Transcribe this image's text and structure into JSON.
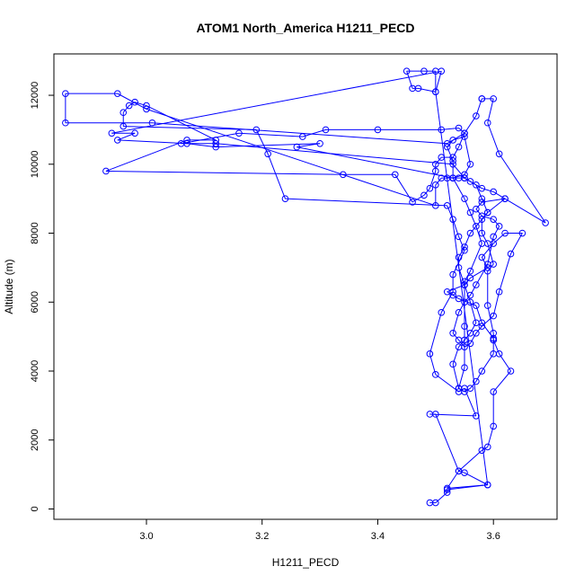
{
  "chart_data": {
    "type": "line",
    "title": "ATOM1 North_America H1211_PECD",
    "xlabel": "H1211_PECD",
    "ylabel": "Altitude (m)",
    "xlim": [
      2.84,
      3.71
    ],
    "ylim": [
      -300,
      13200
    ],
    "x_ticks": [
      3.0,
      3.2,
      3.4,
      3.6
    ],
    "x_tick_labels": [
      "3.0",
      "3.2",
      "3.4",
      "3.6"
    ],
    "y_ticks": [
      0,
      2000,
      4000,
      6000,
      8000,
      10000,
      12000
    ],
    "y_tick_labels": [
      "0",
      "2000",
      "4000",
      "6000",
      "8000",
      "10000",
      "12000"
    ],
    "grid": false,
    "legend": "none",
    "color": "#0000ff",
    "marker": "open-circle",
    "series": [
      {
        "points": [
          [
            3.49,
            180
          ],
          [
            3.5,
            180
          ],
          [
            3.52,
            480
          ],
          [
            3.52,
            560
          ],
          [
            3.59,
            700
          ],
          [
            3.55,
            1050
          ],
          [
            3.54,
            1100
          ],
          [
            3.58,
            1700
          ],
          [
            3.59,
            1800
          ],
          [
            3.6,
            2400
          ],
          [
            3.6,
            3400
          ],
          [
            3.63,
            4000
          ],
          [
            3.61,
            4500
          ],
          [
            3.6,
            4900
          ],
          [
            3.6,
            4950
          ],
          [
            3.58,
            5400
          ],
          [
            3.57,
            5900
          ],
          [
            3.54,
            6100
          ],
          [
            3.53,
            6200
          ],
          [
            3.52,
            6300
          ],
          [
            3.55,
            6500
          ],
          [
            3.56,
            6700
          ],
          [
            3.59,
            7000
          ],
          [
            3.58,
            7300
          ],
          [
            3.6,
            7700
          ],
          [
            3.62,
            8000
          ],
          [
            3.65,
            8000
          ],
          [
            3.63,
            7400
          ],
          [
            3.61,
            6300
          ],
          [
            3.6,
            5600
          ],
          [
            3.58,
            5300
          ],
          [
            3.57,
            5100
          ],
          [
            3.56,
            4800
          ],
          [
            3.55,
            4700
          ],
          [
            3.54,
            4900
          ],
          [
            3.53,
            5100
          ],
          [
            3.54,
            5700
          ],
          [
            3.55,
            6000
          ],
          [
            3.56,
            6200
          ],
          [
            3.57,
            6500
          ],
          [
            3.59,
            7100
          ],
          [
            3.6,
            7900
          ],
          [
            3.61,
            8200
          ],
          [
            3.6,
            8400
          ],
          [
            3.58,
            8500
          ],
          [
            3.57,
            8700
          ],
          [
            3.58,
            8900
          ],
          [
            3.62,
            9000
          ],
          [
            3.6,
            9200
          ],
          [
            3.58,
            9300
          ],
          [
            3.56,
            9500
          ],
          [
            3.55,
            9600
          ],
          [
            3.54,
            9600
          ],
          [
            3.53,
            9600
          ],
          [
            3.52,
            9600
          ],
          [
            3.51,
            9600
          ],
          [
            3.5,
            9400
          ],
          [
            3.5,
            8800
          ],
          [
            3.0,
            11600
          ],
          [
            2.95,
            12050
          ],
          [
            2.86,
            12050
          ],
          [
            2.86,
            11200
          ],
          [
            3.01,
            11200
          ],
          [
            3.52,
            10600
          ],
          [
            3.55,
            10900
          ],
          [
            3.54,
            11050
          ],
          [
            3.51,
            11000
          ],
          [
            3.4,
            11000
          ],
          [
            3.31,
            11000
          ],
          [
            3.27,
            10800
          ],
          [
            3.16,
            10900
          ],
          [
            3.06,
            10600
          ],
          [
            3.12,
            10600
          ],
          [
            3.53,
            10000
          ],
          [
            3.55,
            9600
          ],
          [
            3.57,
            9400
          ],
          [
            3.58,
            9000
          ],
          [
            3.59,
            8600
          ],
          [
            3.56,
            8000
          ],
          [
            3.55,
            7600
          ],
          [
            3.54,
            7300
          ],
          [
            3.54,
            7000
          ],
          [
            3.55,
            6500
          ],
          [
            3.56,
            6000
          ],
          [
            3.57,
            5400
          ],
          [
            3.56,
            5100
          ],
          [
            3.55,
            4900
          ],
          [
            3.54,
            4700
          ],
          [
            3.53,
            4200
          ],
          [
            3.54,
            3500
          ],
          [
            3.55,
            3400
          ],
          [
            3.56,
            3500
          ],
          [
            3.57,
            3700
          ],
          [
            3.58,
            4000
          ],
          [
            3.6,
            4500
          ],
          [
            3.6,
            4900
          ],
          [
            3.6,
            5100
          ],
          [
            3.59,
            5900
          ],
          [
            3.59,
            6900
          ],
          [
            3.6,
            7100
          ],
          [
            3.59,
            7700
          ],
          [
            3.58,
            8000
          ],
          [
            3.58,
            8400
          ],
          [
            3.59,
            8600
          ],
          [
            3.62,
            9000
          ],
          [
            3.69,
            8300
          ],
          [
            3.61,
            10300
          ],
          [
            3.59,
            11200
          ],
          [
            3.6,
            11900
          ],
          [
            3.58,
            11900
          ],
          [
            3.58,
            11900
          ],
          [
            3.57,
            11400
          ],
          [
            3.55,
            10900
          ],
          [
            3.54,
            10500
          ],
          [
            3.53,
            10200
          ],
          [
            3.51,
            10200
          ],
          [
            3.5,
            10000
          ],
          [
            3.5,
            9800
          ],
          [
            3.49,
            9300
          ],
          [
            3.48,
            9100
          ],
          [
            3.46,
            8900
          ],
          [
            3.43,
            9700
          ],
          [
            3.34,
            9700
          ],
          [
            2.93,
            9800
          ],
          [
            3.07,
            10700
          ],
          [
            3.12,
            10700
          ],
          [
            3.0,
            11700
          ],
          [
            2.98,
            11800
          ],
          [
            2.97,
            11700
          ],
          [
            2.96,
            11500
          ],
          [
            2.96,
            11100
          ],
          [
            3.19,
            11000
          ],
          [
            3.21,
            10300
          ],
          [
            3.24,
            9000
          ],
          [
            3.52,
            8800
          ],
          [
            3.53,
            8400
          ],
          [
            3.54,
            7900
          ],
          [
            3.55,
            7500
          ],
          [
            3.53,
            6800
          ],
          [
            3.53,
            6300
          ],
          [
            3.51,
            5700
          ],
          [
            3.49,
            4500
          ],
          [
            3.5,
            3900
          ],
          [
            3.54,
            3400
          ],
          [
            3.55,
            3500
          ],
          [
            3.57,
            2700
          ],
          [
            3.49,
            2750
          ],
          [
            3.5,
            2750
          ],
          [
            3.54,
            1100
          ],
          [
            3.52,
            600
          ],
          [
            3.59,
            700
          ],
          [
            3.5,
            12100
          ],
          [
            3.47,
            12200
          ],
          [
            3.46,
            12200
          ],
          [
            3.45,
            12700
          ],
          [
            3.48,
            12700
          ],
          [
            3.5,
            12700
          ],
          [
            3.5,
            12100
          ],
          [
            3.51,
            12700
          ],
          [
            2.94,
            10900
          ],
          [
            2.98,
            10900
          ],
          [
            2.95,
            10700
          ],
          [
            3.07,
            10600
          ],
          [
            3.12,
            10500
          ],
          [
            3.3,
            10600
          ],
          [
            3.26,
            10500
          ],
          [
            3.53,
            9600
          ],
          [
            3.55,
            9700
          ],
          [
            3.56,
            10000
          ],
          [
            3.55,
            10800
          ],
          [
            3.53,
            10700
          ],
          [
            3.52,
            10500
          ],
          [
            3.53,
            10100
          ],
          [
            3.53,
            9600
          ],
          [
            3.55,
            9000
          ],
          [
            3.56,
            8600
          ],
          [
            3.57,
            8200
          ],
          [
            3.58,
            7700
          ],
          [
            3.56,
            6900
          ],
          [
            3.55,
            6600
          ],
          [
            3.55,
            5300
          ],
          [
            3.55,
            4100
          ],
          [
            3.54,
            3500
          ]
        ]
      }
    ]
  }
}
